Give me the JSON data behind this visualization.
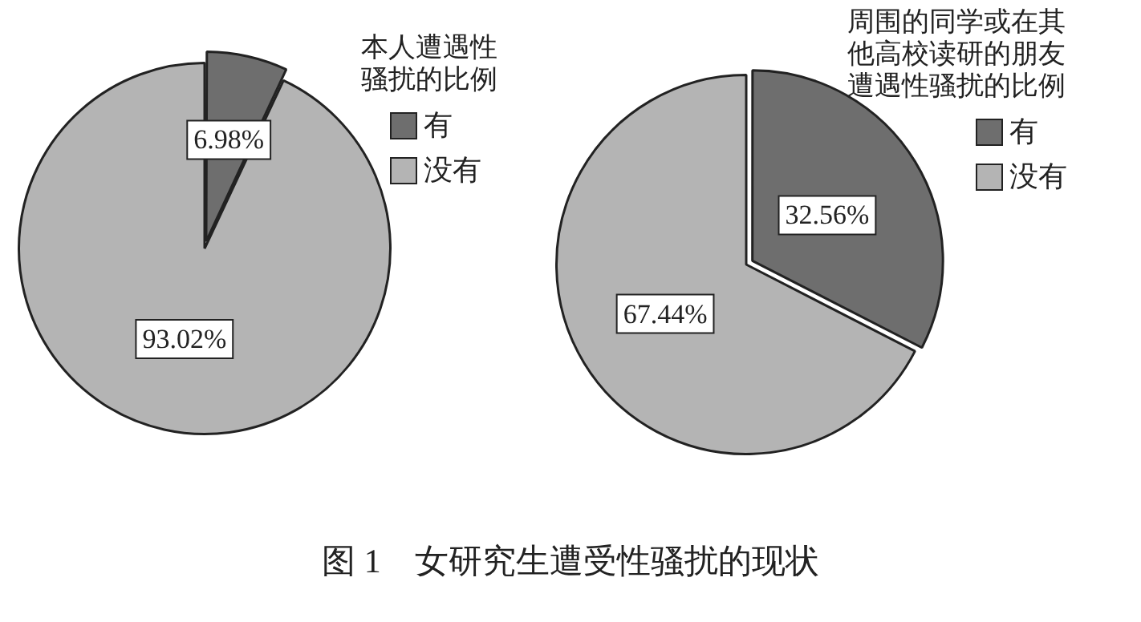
{
  "chart_data": [
    {
      "type": "pie",
      "legend_title": "本人遭遇性骚扰的比例",
      "categories": [
        "有",
        "没有"
      ],
      "values": [
        6.98,
        93.02
      ],
      "colors": [
        "#6e6e6e",
        "#b4b4b4"
      ],
      "value_labels": [
        "6.98%",
        "93.02%"
      ],
      "legend": "top right",
      "annotations": [
        "图 1　女研究生遭受性骚扰的现状"
      ]
    },
    {
      "type": "pie",
      "legend_title": "周围的同学或在其他高校读研的朋友遭遇性骚扰的比例",
      "categories": [
        "有",
        "没有"
      ],
      "values": [
        32.56,
        67.44
      ],
      "colors": [
        "#6e6e6e",
        "#b4b4b4"
      ],
      "value_labels": [
        "32.56%",
        "67.44%"
      ],
      "legend": "top right"
    }
  ]
}
